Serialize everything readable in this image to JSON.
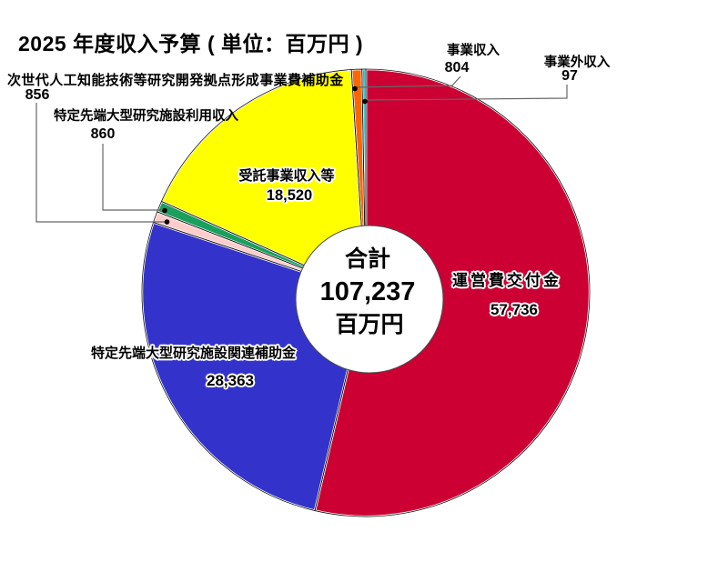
{
  "chart_data": {
    "type": "pie",
    "title": "2025 年度収入予算 ( 単位：百万円 )",
    "unit": "百万円",
    "donut": true,
    "hole_ratio": 0.33,
    "start_angle_deg": 0,
    "direction": "clockwise",
    "legend": "none",
    "background": "#FFFFFF",
    "center_label": {
      "heading": "合計",
      "value": "107,237",
      "value_number": 107237,
      "unit": "百万円"
    },
    "slices": [
      {
        "label": "運営費交付金",
        "value": 57736,
        "display": "57,736",
        "color": "#CC0033"
      },
      {
        "label": "特定先端大型研究施設関連補助金",
        "value": 28363,
        "display": "28,363",
        "color": "#3333CC"
      },
      {
        "label": "次世代人工知能技術等研究開発拠点形成事業費補助金",
        "value": 856,
        "display": "856",
        "color": "#FFCCCC"
      },
      {
        "label": "特定先端大型研究施設利用収入",
        "value": 860,
        "display": "860",
        "color": "#18A05C"
      },
      {
        "label": "受託事業収入等",
        "value": 18520,
        "display": "18,520",
        "color": "#FFFF00"
      },
      {
        "label": "事業収入",
        "value": 804,
        "display": "804",
        "color": "#FF6600"
      },
      {
        "label": "事業外収入",
        "value": 97,
        "display": "97",
        "color": "#00C2CC"
      }
    ]
  }
}
